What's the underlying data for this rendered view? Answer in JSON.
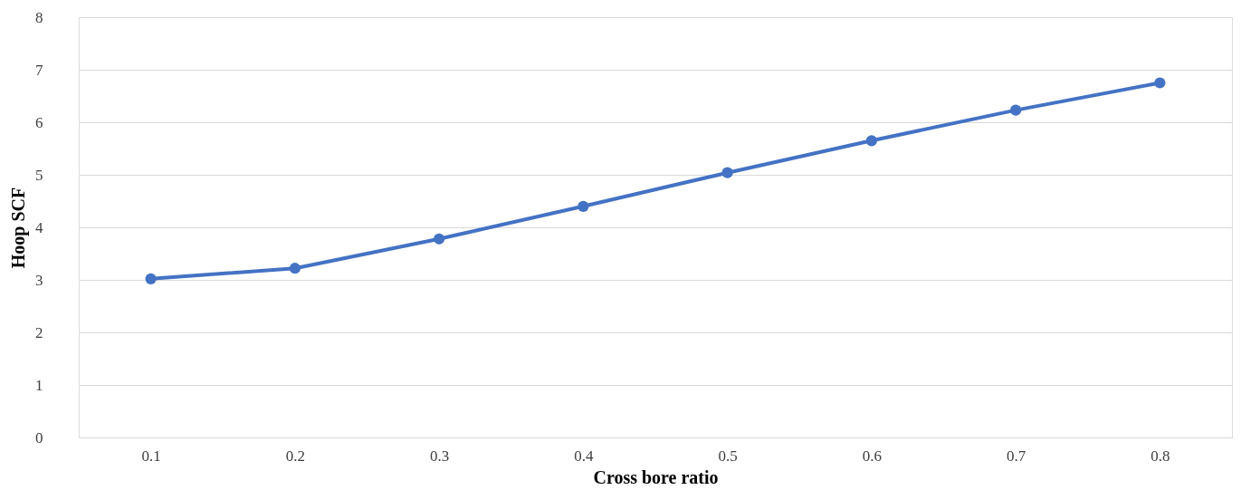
{
  "chart_data": {
    "type": "line",
    "xlabel": "Cross bore ratio",
    "ylabel": "Hoop SCF",
    "categories": [
      "0.1",
      "0.2",
      "0.3",
      "0.4",
      "0.5",
      "0.6",
      "0.7",
      "0.8"
    ],
    "series": [
      {
        "color": "#4472c4",
        "values": [
          3.02,
          3.22,
          3.78,
          4.4,
          5.04,
          5.65,
          6.23,
          6.75
        ]
      }
    ],
    "ylim": [
      0,
      8
    ],
    "yticks": [
      0,
      1,
      2,
      3,
      4,
      5,
      6,
      7,
      8
    ],
    "grid": "y",
    "marker": "circle",
    "line_style": "solid"
  }
}
